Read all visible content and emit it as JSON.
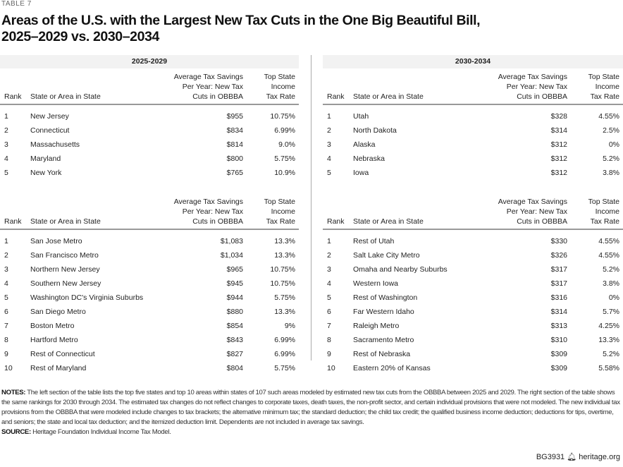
{
  "label": "TABLE 7",
  "title_line1": "Areas of the U.S. with the Largest New Tax Cuts in the One Big Beautiful Bill,",
  "title_line2": "2025–2029 vs. 2030–2034",
  "columns": {
    "rank": "Rank",
    "area": "State or Area in State",
    "savings_1": "Average Tax Savings",
    "savings_2": "Per Year: New Tax",
    "savings_3": "Cuts in OBBBA",
    "rate_1": "Top State",
    "rate_2": "Income",
    "rate_3": "Tax Rate"
  },
  "panels": [
    {
      "period": "2025-2029",
      "states": [
        [
          "1",
          "New Jersey",
          "$955",
          "10.75%"
        ],
        [
          "2",
          "Connecticut",
          "$834",
          "6.99%"
        ],
        [
          "3",
          "Massachusetts",
          "$814",
          "9.0%"
        ],
        [
          "4",
          "Maryland",
          "$800",
          "5.75%"
        ],
        [
          "5",
          "New York",
          "$765",
          "10.9%"
        ]
      ],
      "areas": [
        [
          "1",
          "San Jose Metro",
          "$1,083",
          "13.3%"
        ],
        [
          "2",
          "San Francisco Metro",
          "$1,034",
          "13.3%"
        ],
        [
          "3",
          "Northern New Jersey",
          "$965",
          "10.75%"
        ],
        [
          "4",
          "Southern New Jersey",
          "$945",
          "10.75%"
        ],
        [
          "5",
          "Washington DC's Virginia Suburbs",
          "$944",
          "5.75%"
        ],
        [
          "6",
          "San Diego Metro",
          "$880",
          "13.3%"
        ],
        [
          "7",
          "Boston Metro",
          "$854",
          "9%"
        ],
        [
          "8",
          "Hartford Metro",
          "$843",
          "6.99%"
        ],
        [
          "9",
          "Rest of Connecticut",
          "$827",
          "6.99%"
        ],
        [
          "10",
          "Rest of Maryland",
          "$804",
          "5.75%"
        ]
      ]
    },
    {
      "period": "2030-2034",
      "states": [
        [
          "1",
          "Utah",
          "$328",
          "4.55%"
        ],
        [
          "2",
          "North Dakota",
          "$314",
          "2.5%"
        ],
        [
          "3",
          "Alaska",
          "$312",
          "0%"
        ],
        [
          "4",
          "Nebraska",
          "$312",
          "5.2%"
        ],
        [
          "5",
          "Iowa",
          "$312",
          "3.8%"
        ]
      ],
      "areas": [
        [
          "1",
          "Rest of Utah",
          "$330",
          "4.55%"
        ],
        [
          "2",
          "Salt Lake City Metro",
          "$326",
          "4.55%"
        ],
        [
          "3",
          "Omaha and Nearby Suburbs",
          "$317",
          "5.2%"
        ],
        [
          "4",
          "Western Iowa",
          "$317",
          "3.8%"
        ],
        [
          "5",
          "Rest of Washington",
          "$316",
          "0%"
        ],
        [
          "6",
          "Far Western Idaho",
          "$314",
          "5.7%"
        ],
        [
          "7",
          "Raleigh Metro",
          "$313",
          "4.25%"
        ],
        [
          "8",
          "Sacramento Metro",
          "$310",
          "13.3%"
        ],
        [
          "9",
          "Rest of Nebraska",
          "$309",
          "5.2%"
        ],
        [
          "10",
          "Eastern 20% of Kansas",
          "$309",
          "5.58%"
        ]
      ]
    }
  ],
  "notes_label": "NOTES:",
  "notes_text": " The left section of the table lists the top five states and top 10 areas within states of 107 such areas modeled by estimated new tax cuts from the OBBBA between 2025 and 2029. The right section of the table shows the same rankings for 2030 through 2034. The estimated tax changes do not reflect changes to corporate taxes, death taxes, the non-profit sector, and certain individual provisions that were not modeled. The new individual tax provisions from the OBBBA that were modeled include changes to tax brackets; the alternative minimum tax; the standard deduction; the child tax credit; the qualified business income deduction; deductions for tips, overtime, and seniors; the state and local tax deduction; and the itemized deduction limit. Dependents are not included in average tax savings.",
  "source_label": "SOURCE:",
  "source_text": " Heritage Foundation Individual Income Tax Model.",
  "footer_code": "BG3931",
  "footer_icon": "liberty-bell-icon",
  "footer_site": "heritage.org"
}
